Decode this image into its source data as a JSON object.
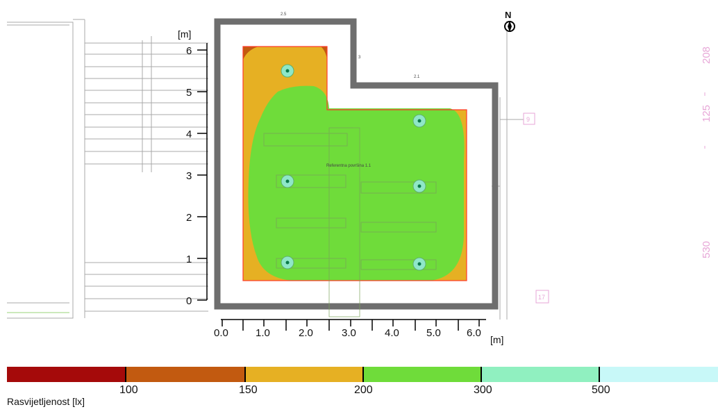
{
  "plan": {
    "y_axis_unit": "[m]",
    "x_axis_unit": "[m]",
    "y_ticks": [
      "0",
      "1",
      "2",
      "3",
      "4",
      "5",
      "6"
    ],
    "x_ticks": [
      "0.0",
      "1.0",
      "2.0",
      "3.0",
      "4.0",
      "5.0",
      "6.0"
    ],
    "north_label": "N",
    "room_label": "Referentna površina 1.1",
    "side_labels": [
      "208",
      "125",
      "530"
    ],
    "pink_box_labels": [
      "9",
      "17"
    ],
    "dim_labels": [
      "2.5",
      "2.1",
      "3"
    ]
  },
  "legend": {
    "title": "Rasvijetljenost [lx]",
    "values": [
      "100",
      "150",
      "200",
      "300",
      "500"
    ],
    "colors": [
      "#a50a0a",
      "#c25a10",
      "#e6b023",
      "#6fdc3a",
      "#90f0c0",
      "#c8f8f8"
    ]
  },
  "luminaires": [
    {
      "x": 1.5,
      "y": 5.5
    },
    {
      "x": 4.7,
      "y": 4.3
    },
    {
      "x": 1.5,
      "y": 2.85
    },
    {
      "x": 4.7,
      "y": 2.75
    },
    {
      "x": 1.5,
      "y": 0.9
    },
    {
      "x": 4.7,
      "y": 0.85
    }
  ],
  "colors": {
    "wall": "#6e6e6e",
    "zone_200_300": "#6fdc3a",
    "zone_150_200": "#e6b023",
    "zone_100_150": "#c25a10",
    "room_outline": "#ff3a2a"
  }
}
